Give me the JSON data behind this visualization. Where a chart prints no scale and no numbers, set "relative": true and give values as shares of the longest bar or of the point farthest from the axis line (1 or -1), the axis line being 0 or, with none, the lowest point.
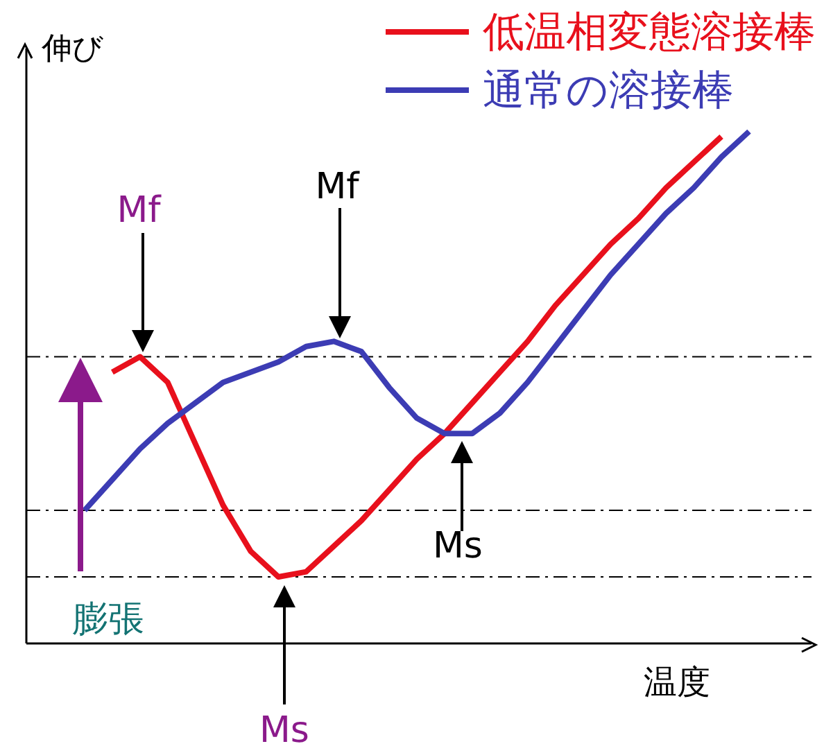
{
  "chart_data": {
    "type": "line",
    "relative": true,
    "xlabel": "温度",
    "ylabel": "伸び",
    "categories": [
      null,
      null,
      null,
      null,
      null,
      null,
      null,
      null,
      null,
      null,
      null,
      null,
      null,
      null,
      null,
      null,
      null,
      null,
      null,
      null,
      null,
      null,
      null,
      null,
      null
    ],
    "series": [
      {
        "name": "低温相変態溶接棒",
        "color": "#e8101c",
        "values": [
          null,
          0.53,
          0.56,
          0.51,
          0.39,
          0.27,
          0.18,
          0.13,
          0.14,
          0.19,
          0.24,
          0.3,
          0.36,
          0.41,
          0.47,
          0.53,
          0.59,
          0.66,
          0.72,
          0.78,
          0.83,
          0.89,
          0.94,
          0.99,
          null
        ]
      },
      {
        "name": "通常の溶接棒",
        "color": "#3c3cb4",
        "values": [
          0.26,
          0.32,
          0.38,
          0.43,
          0.47,
          0.51,
          0.53,
          0.55,
          0.58,
          0.59,
          0.57,
          0.5,
          0.44,
          0.41,
          0.41,
          0.45,
          0.51,
          0.58,
          0.65,
          0.72,
          0.78,
          0.84,
          0.89,
          0.95,
          1.0
        ]
      }
    ],
    "ref_lines": [
      {
        "axis": "y",
        "value": 0.56,
        "line_style": "dashed",
        "color": "#000000"
      },
      {
        "axis": "y",
        "value": 0.26,
        "line_style": "dashed",
        "color": "#000000"
      },
      {
        "axis": "y",
        "value": 0.13,
        "line_style": "dashed",
        "color": "#000000"
      }
    ],
    "annotations": [
      "Mf",
      "Mf",
      "Ms",
      "Ms",
      "膨張"
    ],
    "legend": "top right",
    "marker": "none",
    "line_style": "solid",
    "grid": false
  }
}
